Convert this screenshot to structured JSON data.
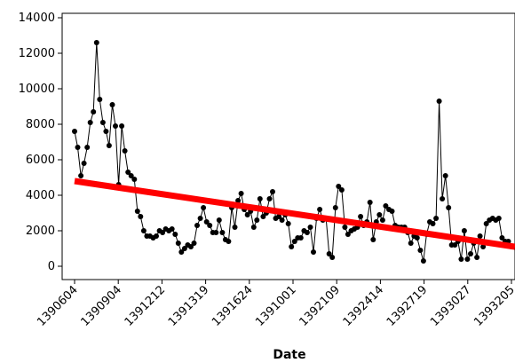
{
  "chart_data": {
    "type": "scatter",
    "title": "",
    "xlabel": "Date",
    "ylabel": "",
    "ylim": [
      -700,
      14200
    ],
    "yticks": [
      0,
      2000,
      4000,
      6000,
      8000,
      10000,
      12000,
      14000
    ],
    "xticks": [
      "1390604",
      "1390904",
      "1391212",
      "1391319",
      "1391624",
      "1391001",
      "1392109",
      "1392414",
      "1392719",
      "1393027",
      "1393205"
    ],
    "colors": {
      "series": "#000000",
      "trend": "#ff0000"
    },
    "series": [
      {
        "type": "line-with-markers",
        "values": [
          7600,
          6700,
          5100,
          5800,
          6700,
          8100,
          8700,
          12600,
          9400,
          8100,
          7600,
          6800,
          9100,
          7900,
          4600,
          7900,
          6500,
          5300,
          5100,
          4900,
          3100,
          2800,
          2000,
          1700,
          1700,
          1600,
          1700,
          2000,
          1900,
          2100,
          2000,
          2100,
          1800,
          1300,
          800,
          1000,
          1200,
          1100,
          1300,
          2300,
          2700,
          3300,
          2500,
          2300,
          1900,
          1900,
          2600,
          1900,
          1500,
          1400,
          3300,
          2200,
          3700,
          4100,
          3200,
          2900,
          3100,
          2200,
          2600,
          3800,
          2800,
          3000,
          3800,
          4200,
          2700,
          2800,
          2600,
          2900,
          2400,
          1100,
          1400,
          1600,
          1600,
          2000,
          1900,
          2200,
          800,
          2700,
          3200,
          2600,
          2700,
          700,
          500,
          3300,
          4500,
          4300,
          2200,
          1800,
          2000,
          2100,
          2200,
          2800,
          2300,
          2500,
          3600,
          1500,
          2500,
          2900,
          2600,
          3400,
          3200,
          3100,
          2300,
          2200,
          2200,
          2200,
          1900,
          1300,
          1700,
          1600,
          900,
          300,
          1800,
          2500,
          2400,
          2700,
          9300,
          3800,
          5100,
          3300,
          1200,
          1200,
          1400,
          400,
          2000,
          400,
          700,
          1300,
          500,
          1700,
          1100,
          2400,
          2600,
          2700,
          2600,
          2700,
          1600,
          1400,
          1400,
          1100
        ]
      },
      {
        "type": "trend-line",
        "values": [
          4800,
          1100
        ]
      }
    ]
  }
}
